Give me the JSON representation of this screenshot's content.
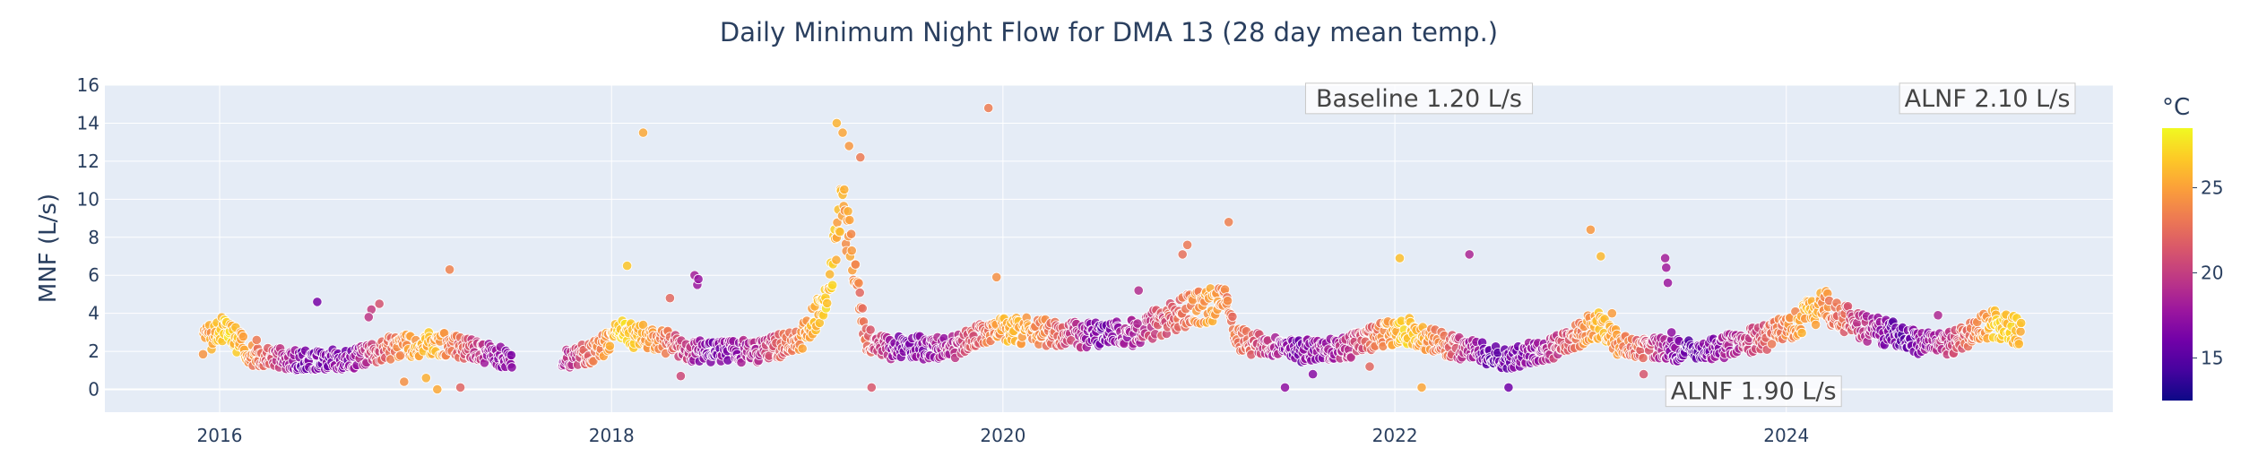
{
  "chart_data": {
    "type": "scatter",
    "title": "Daily Minimum Night Flow for DMA 13 (28 day mean temp.)",
    "ylabel": "MNF (L/s)",
    "xlabel": "",
    "xlim": [
      "2015-06-01",
      "2025-09-01"
    ],
    "ylim": [
      -1.2,
      16
    ],
    "grid": true,
    "x_ticks": [
      "2016",
      "2018",
      "2020",
      "2022",
      "2024"
    ],
    "x_tick_dates": [
      "2016-01-01",
      "2018-01-01",
      "2020-01-01",
      "2022-01-01",
      "2024-01-01"
    ],
    "y_ticks": [
      0,
      2,
      4,
      6,
      8,
      10,
      12,
      14,
      16
    ],
    "colorbar": {
      "title": "°C",
      "colorscale": "Plasma",
      "range": [
        12.5,
        28.5
      ],
      "ticks": [
        15,
        20,
        25
      ]
    },
    "annotations": [
      {
        "text": "Baseline 1.20 L/s",
        "date": "2022-02-15",
        "y": 15.3
      },
      {
        "text": "ALNF 2.10 L/s",
        "date": "2025-01-10",
        "y": 15.3
      },
      {
        "text": "ALNF 1.90 L/s",
        "date": "2023-11-01",
        "y": -0.1
      }
    ],
    "series_profile": {
      "name": "MNF",
      "points_per_week": 5,
      "segments": [
        {
          "start": "2015-12-01",
          "end": "2017-06-30"
        },
        {
          "start": "2017-10-01",
          "end": "2025-03-15"
        }
      ],
      "flow_anchors": [
        [
          "2015-12-01",
          2.5
        ],
        [
          "2016-01-10",
          3.2
        ],
        [
          "2016-03-01",
          1.8
        ],
        [
          "2016-06-01",
          1.5
        ],
        [
          "2016-09-01",
          1.6
        ],
        [
          "2016-12-01",
          2.3
        ],
        [
          "2017-02-15",
          2.4
        ],
        [
          "2017-06-30",
          1.6
        ],
        [
          "2017-10-01",
          1.5
        ],
        [
          "2017-12-01",
          2.0
        ],
        [
          "2018-01-20",
          3.0
        ],
        [
          "2018-04-01",
          2.6
        ],
        [
          "2018-06-01",
          2.0
        ],
        [
          "2018-10-01",
          2.0
        ],
        [
          "2018-12-20",
          2.6
        ],
        [
          "2019-02-10",
          5.0
        ],
        [
          "2019-03-05",
          10.0
        ],
        [
          "2019-03-20",
          8.0
        ],
        [
          "2019-04-20",
          2.6
        ],
        [
          "2019-06-01",
          2.2
        ],
        [
          "2019-10-01",
          2.2
        ],
        [
          "2020-01-01",
          3.2
        ],
        [
          "2020-06-01",
          2.8
        ],
        [
          "2020-09-01",
          3.0
        ],
        [
          "2020-12-15",
          4.2
        ],
        [
          "2021-02-20",
          4.6
        ],
        [
          "2021-03-10",
          2.6
        ],
        [
          "2021-07-01",
          2.0
        ],
        [
          "2021-10-01",
          2.2
        ],
        [
          "2022-01-15",
          3.2
        ],
        [
          "2022-04-01",
          2.4
        ],
        [
          "2022-08-01",
          1.6
        ],
        [
          "2022-11-15",
          2.4
        ],
        [
          "2023-01-10",
          3.5
        ],
        [
          "2023-03-01",
          2.2
        ],
        [
          "2023-08-01",
          2.0
        ],
        [
          "2023-12-01",
          2.8
        ],
        [
          "2024-03-15",
          4.4
        ],
        [
          "2024-05-01",
          3.5
        ],
        [
          "2024-09-01",
          2.5
        ],
        [
          "2024-11-01",
          2.4
        ],
        [
          "2025-01-20",
          3.5
        ],
        [
          "2025-03-15",
          3.0
        ]
      ],
      "temp_anchors": [
        [
          "2015-12-01",
          24
        ],
        [
          "2016-01-15",
          27
        ],
        [
          "2016-03-01",
          24
        ],
        [
          "2016-06-01",
          16
        ],
        [
          "2016-09-01",
          17
        ],
        [
          "2016-12-01",
          24
        ],
        [
          "2017-02-01",
          26
        ],
        [
          "2017-06-01",
          17
        ],
        [
          "2017-10-01",
          18
        ],
        [
          "2018-01-20",
          27
        ],
        [
          "2018-04-01",
          24
        ],
        [
          "2018-07-01",
          16
        ],
        [
          "2018-10-01",
          19
        ],
        [
          "2019-02-01",
          27
        ],
        [
          "2019-04-01",
          24
        ],
        [
          "2019-07-01",
          16
        ],
        [
          "2019-10-01",
          19
        ],
        [
          "2020-01-15",
          26
        ],
        [
          "2020-04-01",
          23
        ],
        [
          "2020-07-01",
          16
        ],
        [
          "2020-10-01",
          20
        ],
        [
          "2021-01-20",
          25
        ],
        [
          "2021-04-01",
          22
        ],
        [
          "2021-07-01",
          16
        ],
        [
          "2021-10-01",
          19
        ],
        [
          "2022-01-20",
          27
        ],
        [
          "2022-04-01",
          23
        ],
        [
          "2022-07-01",
          15
        ],
        [
          "2022-10-01",
          18
        ],
        [
          "2023-01-20",
          26
        ],
        [
          "2023-04-01",
          22
        ],
        [
          "2023-07-01",
          15
        ],
        [
          "2023-10-01",
          19
        ],
        [
          "2024-02-15",
          26
        ],
        [
          "2024-05-01",
          21
        ],
        [
          "2024-08-01",
          15
        ],
        [
          "2024-11-01",
          20
        ],
        [
          "2025-02-01",
          27
        ],
        [
          "2025-03-15",
          26
        ]
      ],
      "outliers": [
        [
          "2016-03-10",
          2.6
        ],
        [
          "2016-07-01",
          4.6
        ],
        [
          "2016-10-10",
          4.2
        ],
        [
          "2016-10-25",
          4.5
        ],
        [
          "2016-10-05",
          3.8
        ],
        [
          "2016-12-10",
          0.4
        ],
        [
          "2017-01-20",
          0.6
        ],
        [
          "2017-02-10",
          0.0
        ],
        [
          "2017-03-05",
          6.3
        ],
        [
          "2017-03-25",
          0.1
        ],
        [
          "2018-03-01",
          13.5
        ],
        [
          "2018-01-30",
          6.5
        ],
        [
          "2018-06-05",
          6.0
        ],
        [
          "2018-06-10",
          5.5
        ],
        [
          "2018-06-12",
          5.8
        ],
        [
          "2018-04-20",
          4.8
        ],
        [
          "2018-05-10",
          0.7
        ],
        [
          "2019-02-25",
          14.0
        ],
        [
          "2019-03-08",
          13.5
        ],
        [
          "2019-03-20",
          12.8
        ],
        [
          "2019-04-10",
          12.2
        ],
        [
          "2019-05-01",
          0.1
        ],
        [
          "2019-12-05",
          14.8
        ],
        [
          "2019-12-20",
          5.9
        ],
        [
          "2020-09-10",
          5.2
        ],
        [
          "2020-12-10",
          7.6
        ],
        [
          "2020-12-01",
          7.1
        ],
        [
          "2021-02-25",
          8.8
        ],
        [
          "2021-06-10",
          0.1
        ],
        [
          "2021-08-01",
          0.8
        ],
        [
          "2021-11-15",
          1.2
        ],
        [
          "2022-01-10",
          6.9
        ],
        [
          "2022-02-20",
          0.1
        ],
        [
          "2022-05-20",
          7.1
        ],
        [
          "2022-08-01",
          0.1
        ],
        [
          "2023-01-01",
          8.4
        ],
        [
          "2023-01-20",
          7.0
        ],
        [
          "2023-02-10",
          4.0
        ],
        [
          "2023-05-20",
          6.9
        ],
        [
          "2023-05-22",
          6.4
        ],
        [
          "2023-05-25",
          5.6
        ],
        [
          "2023-06-01",
          3.0
        ],
        [
          "2023-04-10",
          0.8
        ],
        [
          "2024-10-10",
          3.9
        ]
      ]
    }
  }
}
